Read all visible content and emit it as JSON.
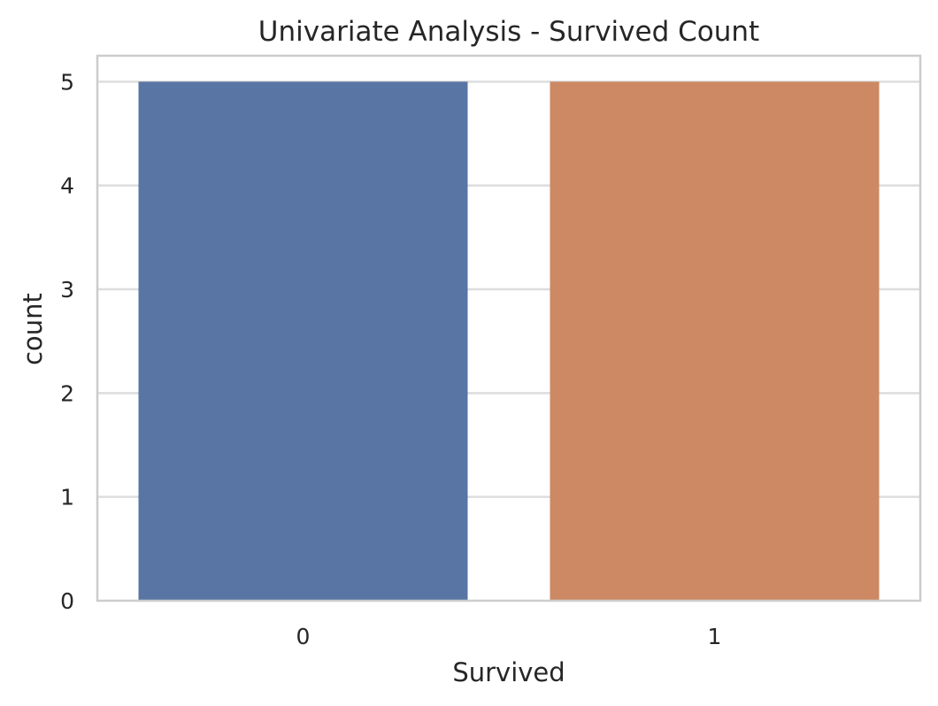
{
  "chart_data": {
    "type": "bar",
    "title": "Univariate Analysis - Survived Count",
    "xlabel": "Survived",
    "ylabel": "count",
    "categories": [
      "0",
      "1"
    ],
    "values": [
      5,
      5
    ],
    "ylim": [
      0,
      5.25
    ],
    "yticks": [
      0,
      1,
      2,
      3,
      4,
      5
    ],
    "grid": true,
    "colors": [
      "#5975a4",
      "#cc8963"
    ]
  }
}
